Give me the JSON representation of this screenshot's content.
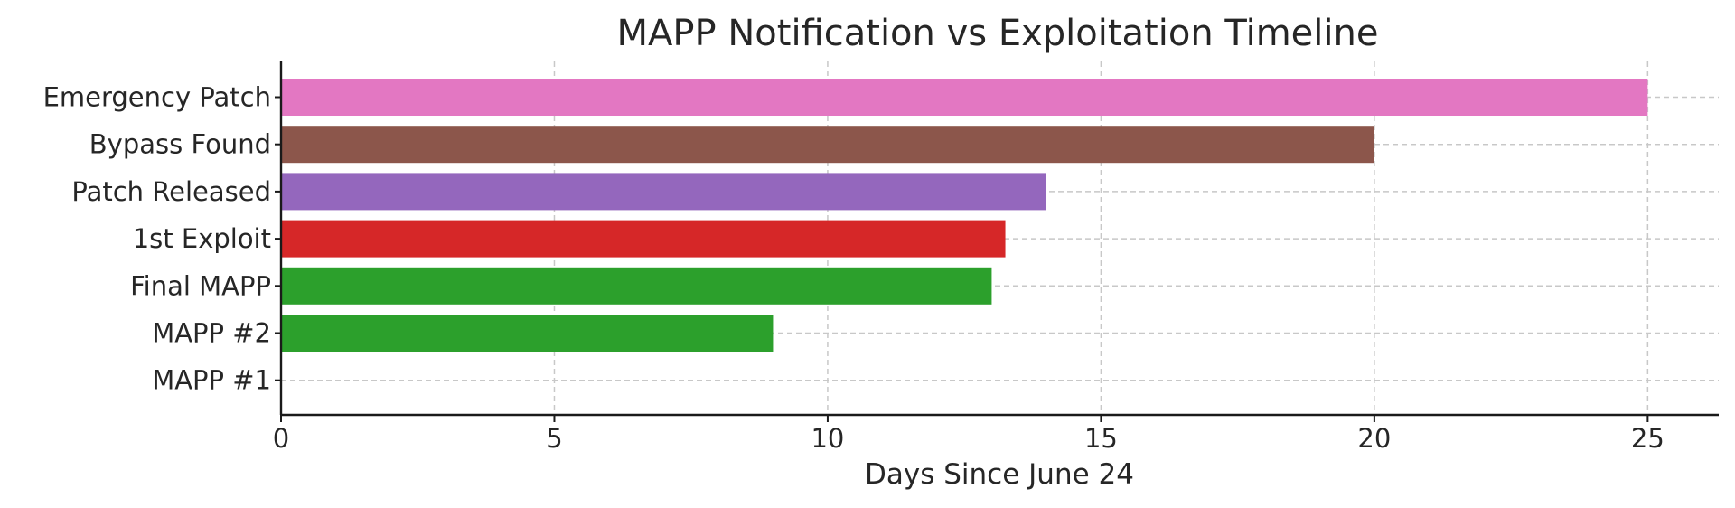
{
  "chart_data": {
    "type": "bar",
    "orientation": "horizontal",
    "title": "MAPP Notification vs Exploitation Timeline",
    "xlabel": "Days Since June 24",
    "ylabel": "",
    "xlim": [
      0,
      26.3
    ],
    "xticks": [
      0,
      5,
      10,
      15,
      20,
      25
    ],
    "grid": true,
    "categories": [
      "MAPP #1",
      "MAPP #2",
      "Final MAPP",
      "1st Exploit",
      "Patch Released",
      "Bypass Found",
      "Emergency Patch"
    ],
    "values": [
      0,
      9,
      13,
      13.25,
      14,
      20,
      25
    ],
    "colors": [
      "#2ca02c",
      "#2ca02c",
      "#2ca02c",
      "#d62728",
      "#9467bd",
      "#8c564b",
      "#e377c2"
    ]
  }
}
